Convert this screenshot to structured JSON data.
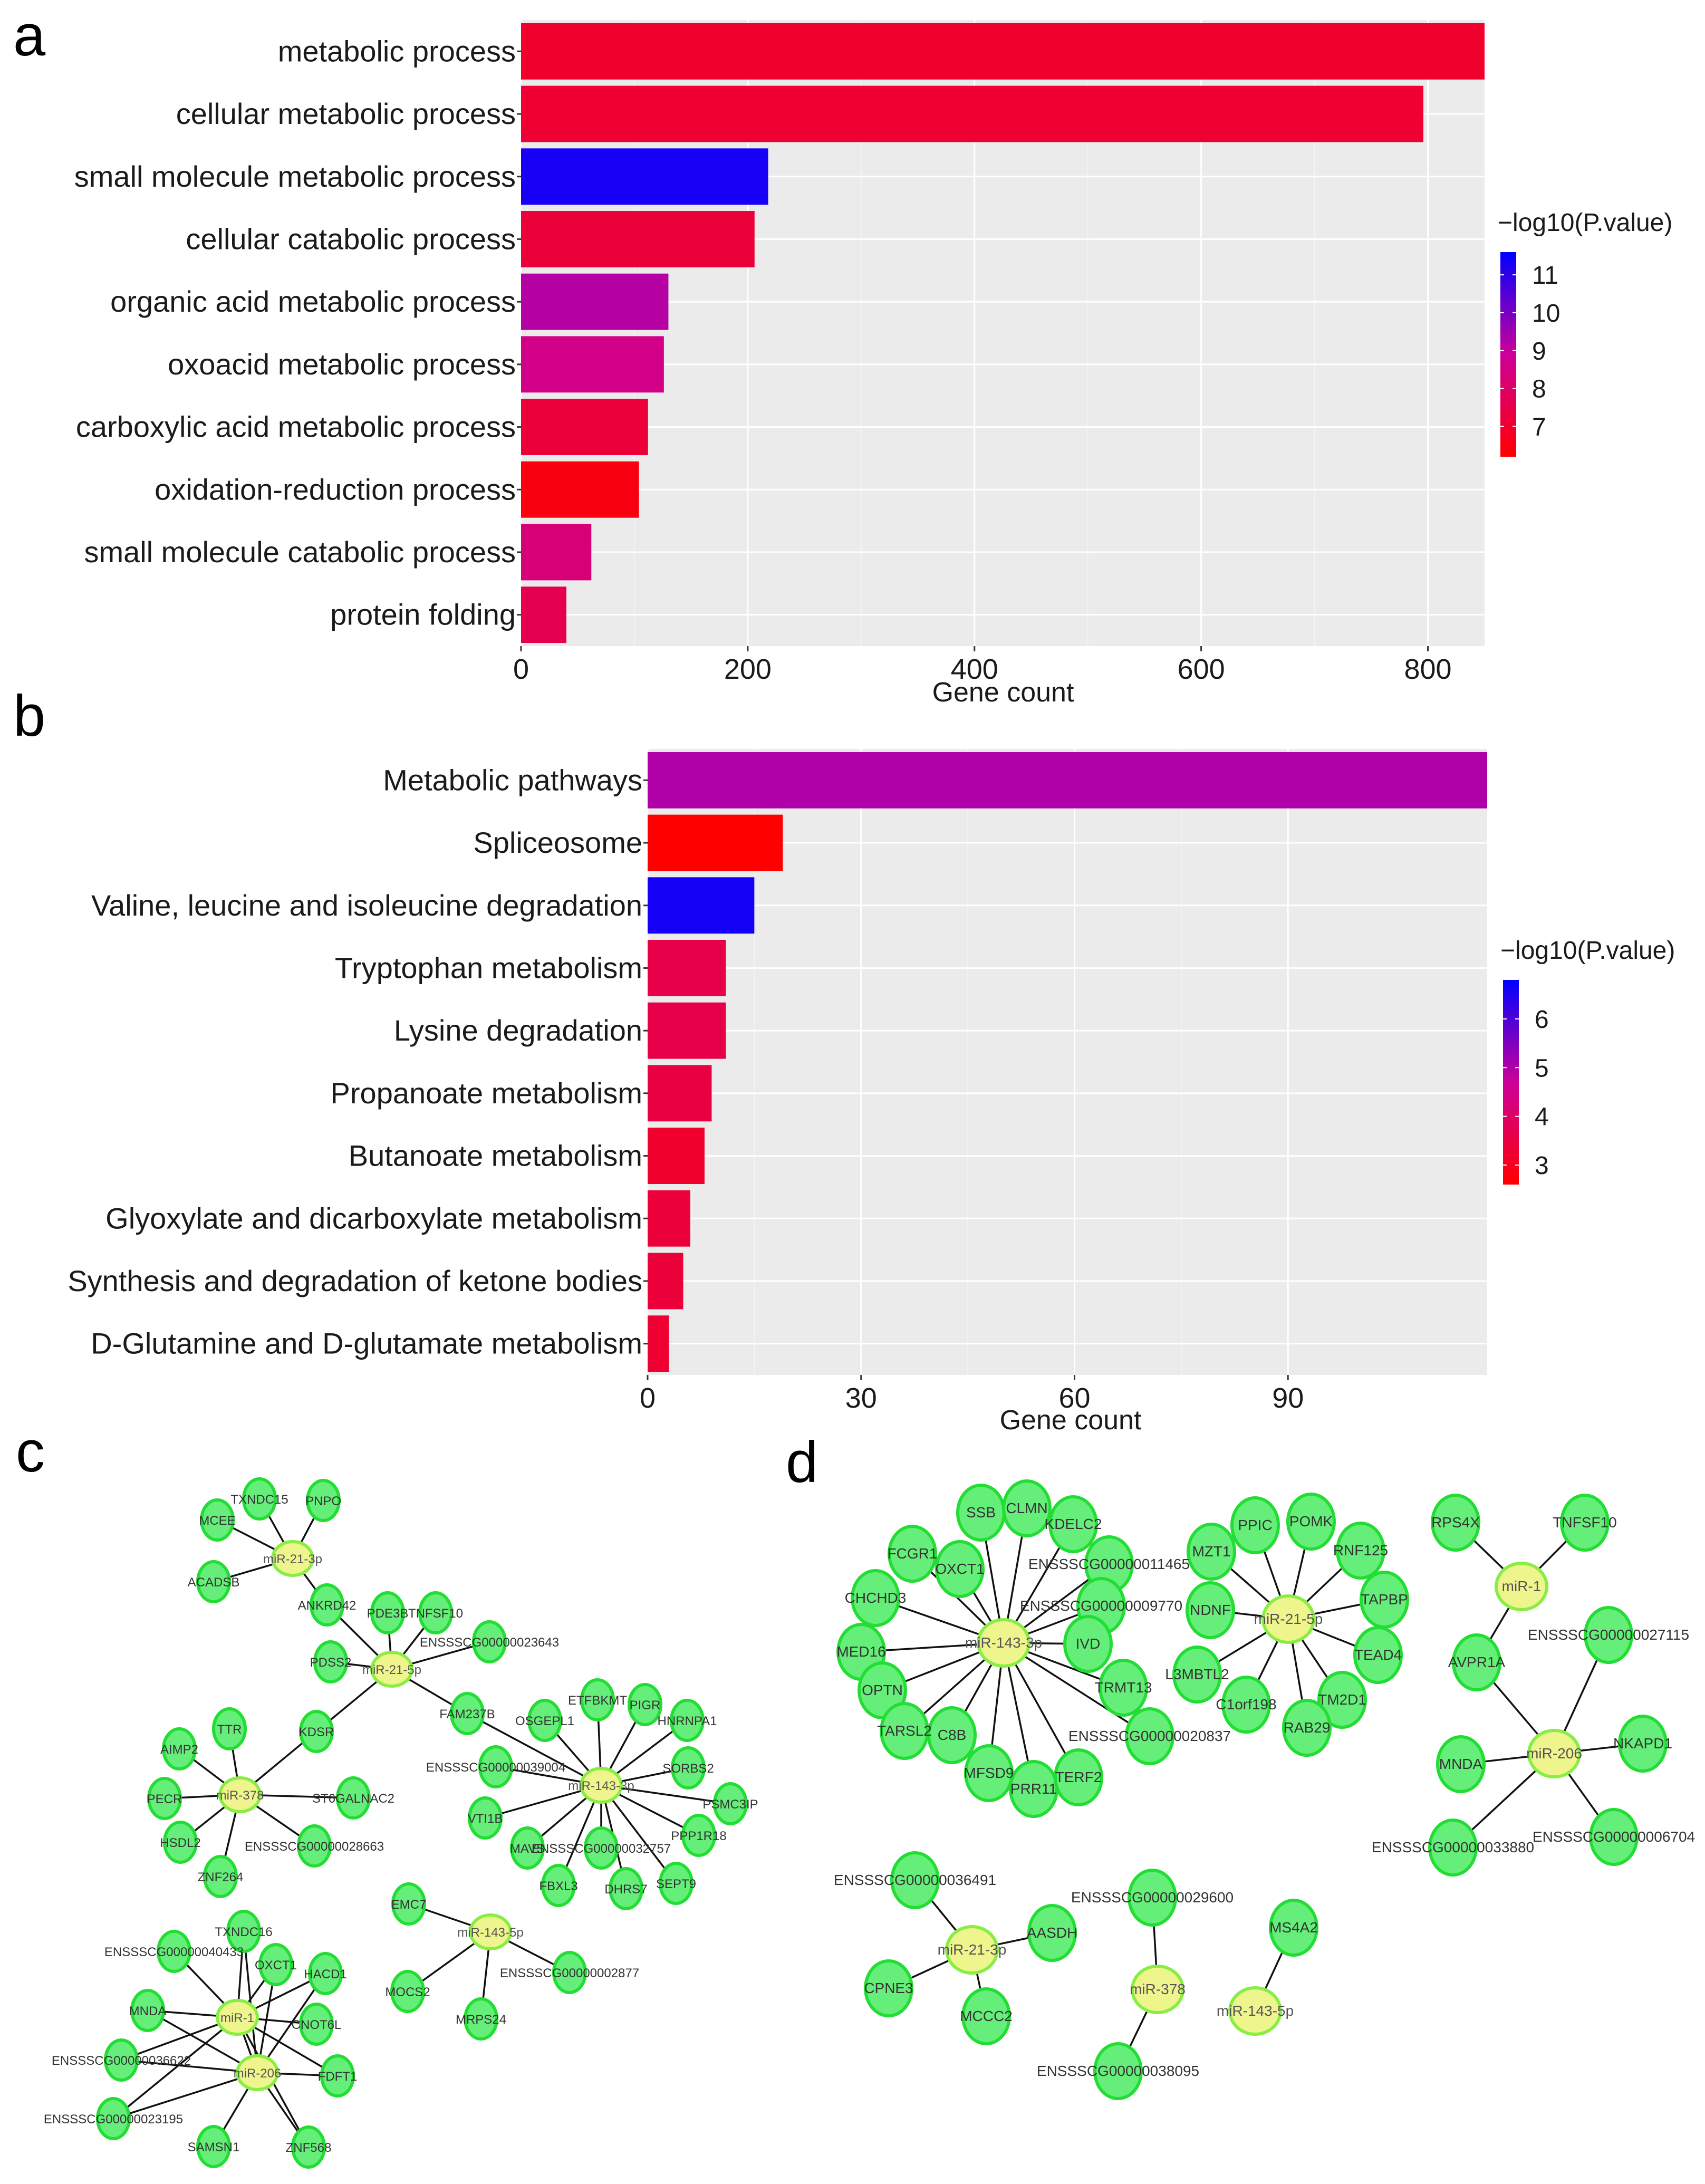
{
  "panels": [
    "a",
    "b",
    "c",
    "d"
  ],
  "chart_data": [
    {
      "type": "bar",
      "orientation": "horizontal",
      "categories": [
        "metabolic process",
        "cellular metabolic process",
        "small molecule metabolic process",
        "cellular catabolic process",
        "organic acid metabolic process",
        "oxoacid metabolic process",
        "carboxylic acid metabolic process",
        "oxidation-reduction process",
        "small molecule catabolic process",
        "protein folding"
      ],
      "values": [
        850,
        796,
        218,
        206,
        130,
        126,
        112,
        104,
        62,
        40
      ],
      "color_values": [
        7.0,
        7.1,
        11.3,
        7.2,
        9.2,
        8.6,
        7.2,
        6.5,
        8.3,
        7.6
      ],
      "xlabel": "Gene count",
      "xticks": [
        0,
        200,
        400,
        600,
        800
      ],
      "xlim": [
        0,
        850
      ],
      "legend_title": "−log10(P.value)",
      "legend_ticks": [
        11,
        10,
        9,
        8,
        7
      ],
      "legend_range": [
        6.2,
        11.6
      ],
      "legend_placement": "right",
      "colors": {
        "low": "#ff0000",
        "high": "#0000ff"
      },
      "grid": true
    },
    {
      "type": "bar",
      "orientation": "horizontal",
      "categories": [
        "Metabolic pathways",
        "Spliceosome",
        "Valine, leucine and isoleucine degradation",
        "Tryptophan metabolism",
        "Lysine degradation",
        "Propanoate metabolism",
        "Butanoate metabolism",
        "Glyoxylate and dicarboxylate metabolism",
        "Synthesis and degradation of ketone bodies",
        "D-Glutamine and D-glutamate metabolism"
      ],
      "values": [
        118,
        19,
        15,
        11,
        11,
        9,
        8,
        6,
        5,
        3
      ],
      "color_values": [
        5.0,
        2.6,
        6.6,
        3.6,
        3.6,
        3.5,
        3.2,
        3.4,
        3.4,
        3.3
      ],
      "xlabel": "Gene count",
      "xticks": [
        0,
        30,
        60,
        90
      ],
      "xlim": [
        0,
        118
      ],
      "legend_title": "−log10(P.value)",
      "legend_ticks": [
        6,
        5,
        4,
        3
      ],
      "legend_range": [
        2.6,
        6.8
      ],
      "legend_placement": "right",
      "colors": {
        "low": "#ff0000",
        "high": "#0000ff"
      },
      "grid": true
    }
  ],
  "network_c": {
    "mirnas": [
      "miR-21-3p",
      "miR-21-5p",
      "miR-378",
      "miR-143-3p",
      "miR-143-5p",
      "miR-1",
      "miR-206"
    ],
    "genes": [
      "TXNDC15",
      "PNPO",
      "MCEE",
      "ACADSB",
      "ANKRD42",
      "PDE3B",
      "TNFSF10",
      "ENSSSCG00000023643",
      "PDSS2",
      "FAM237B",
      "KDSR",
      "TTR",
      "AIMP2",
      "PECR",
      "ST6GALNAC2",
      "HSDL2",
      "ENSSSCG00000028663",
      "ZNF264",
      "OSGEPL1",
      "ETFBKMT",
      "PIGR",
      "HNRNPA1",
      "ENSSSCG00000039004",
      "SORBS2",
      "PSMC3IP",
      "VTI1B",
      "PPP1R18",
      "MAVS",
      "ENSSSCG00000032757",
      "FBXL3",
      "DHRS7",
      "SEPT9",
      "EMC7",
      "ENSSSCG00000002877",
      "MOCS2",
      "MRPS24",
      "TXNDC16",
      "ENSSSCG00000040433",
      "OXCT1",
      "HACD1",
      "MNDA",
      "CNOT6L",
      "ENSSSCG00000036622",
      "FDFT1",
      "ENSSSCG00000023195",
      "SAMSN1",
      "ZNF568"
    ]
  },
  "network_d": {
    "mirnas": [
      "miR-143-3p",
      "miR-21-5p",
      "miR-1",
      "miR-206",
      "miR-21-3p",
      "miR-378",
      "miR-143-5p"
    ],
    "genes": [
      "SSB",
      "CLMN",
      "KDELC2",
      "FCGR1",
      "OXCT1",
      "ENSSSCG00000011465",
      "CHCHD3",
      "ENSSSCG00000009770",
      "MED16",
      "IVD",
      "OPTN",
      "TRMT13",
      "TARSL2",
      "C8B",
      "ENSSSCG00000020837",
      "MFSD9",
      "PRR11",
      "TERF2",
      "MZT1",
      "PPIC",
      "POMK",
      "RNF125",
      "NDNF",
      "TAPBP",
      "TEAD4",
      "L3MBTL2",
      "C1orf198",
      "TM2D1",
      "RAB29",
      "RPS4X",
      "TNFSF10",
      "ENSSSCG00000027115",
      "AVPR1A",
      "NKAPD1",
      "MNDA",
      "ENSSSCG00000033880",
      "ENSSSCG00000006704",
      "ENSSSCG00000036491",
      "AASDH",
      "CPNE3",
      "MCCC2",
      "ENSSSCG00000029600",
      "ENSSSCG00000038095",
      "MS4A2"
    ]
  }
}
